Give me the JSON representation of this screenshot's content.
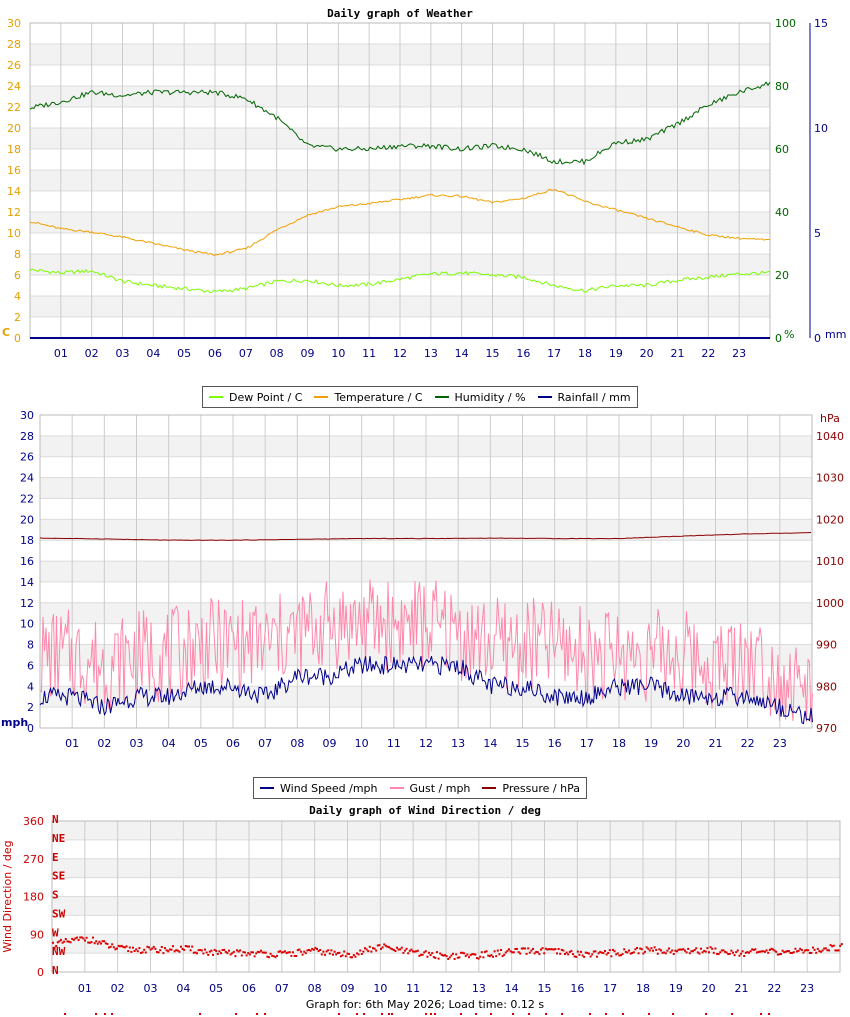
{
  "chart_data": [
    {
      "type": "line",
      "title": "Daily graph of Weather",
      "x_ticks": [
        "01",
        "02",
        "03",
        "04",
        "05",
        "06",
        "07",
        "08",
        "09",
        "10",
        "11",
        "12",
        "13",
        "14",
        "15",
        "16",
        "17",
        "18",
        "19",
        "20",
        "21",
        "22",
        "23"
      ],
      "xlim": [
        0,
        24
      ],
      "axes": {
        "left": {
          "unit": "C",
          "ticks": [
            0,
            2,
            4,
            6,
            8,
            10,
            12,
            14,
            16,
            18,
            20,
            22,
            24,
            26,
            28,
            30
          ],
          "ylim": [
            0,
            30
          ],
          "color": "#e6a000"
        },
        "right1": {
          "unit": "%",
          "ticks": [
            0,
            20,
            40,
            60,
            80,
            100
          ],
          "ylim": [
            0,
            100
          ],
          "color": "#006400"
        },
        "right2": {
          "unit": "mm",
          "ticks": [
            0,
            5,
            10,
            15
          ],
          "ylim": [
            0,
            15
          ],
          "color": "#00008b"
        }
      },
      "grid": true,
      "legend_position": "bottom",
      "series": [
        {
          "name": "Dew Point / C",
          "axis": "left",
          "color": "#7cfc00",
          "x": [
            0,
            1,
            2,
            3,
            4,
            5,
            6,
            7,
            8,
            9,
            10,
            11,
            12,
            13,
            14,
            15,
            16,
            17,
            18,
            19,
            20,
            21,
            22,
            23,
            24
          ],
          "y": [
            6.5,
            6.2,
            6.4,
            5.4,
            5.0,
            4.7,
            4.4,
            4.7,
            5.4,
            5.5,
            5.0,
            5.1,
            5.6,
            6.1,
            6.2,
            6.0,
            5.8,
            5.0,
            4.5,
            5.0,
            5.0,
            5.5,
            5.8,
            6.1,
            6.2
          ]
        },
        {
          "name": "Temperature / C",
          "axis": "left",
          "color": "#f0a000",
          "x": [
            0,
            1,
            2,
            3,
            4,
            5,
            6,
            7,
            8,
            9,
            10,
            11,
            12,
            13,
            14,
            15,
            16,
            17,
            18,
            19,
            20,
            21,
            22,
            23,
            24
          ],
          "y": [
            11.1,
            10.4,
            10.1,
            9.6,
            9.0,
            8.4,
            7.9,
            8.5,
            10.3,
            11.7,
            12.5,
            12.8,
            13.2,
            13.6,
            13.5,
            12.9,
            13.3,
            14.2,
            13.0,
            12.2,
            11.4,
            10.6,
            9.8,
            9.5,
            9.3
          ]
        },
        {
          "name": "Humidity / %",
          "axis": "right1",
          "color": "#006400",
          "x": [
            0,
            1,
            2,
            3,
            4,
            5,
            6,
            7,
            8,
            9,
            10,
            11,
            12,
            13,
            14,
            15,
            16,
            17,
            18,
            19,
            20,
            21,
            22,
            23,
            24
          ],
          "y": [
            73,
            75,
            78,
            77,
            78,
            78,
            78,
            76,
            70,
            61,
            60,
            60,
            61,
            61,
            60,
            61,
            60,
            56,
            56,
            62,
            63,
            68,
            74,
            78,
            81
          ]
        },
        {
          "name": "Rainfall / mm",
          "axis": "right2",
          "color": "#00008b",
          "x": [
            0,
            24
          ],
          "y": [
            0,
            0
          ]
        }
      ]
    },
    {
      "type": "line",
      "title": "",
      "x_ticks": [
        "01",
        "02",
        "03",
        "04",
        "05",
        "06",
        "07",
        "08",
        "09",
        "10",
        "11",
        "12",
        "13",
        "14",
        "15",
        "16",
        "17",
        "18",
        "19",
        "20",
        "21",
        "22",
        "23"
      ],
      "xlim": [
        0,
        24
      ],
      "axes": {
        "left": {
          "unit": "mph",
          "ticks": [
            0,
            2,
            4,
            6,
            8,
            10,
            12,
            14,
            16,
            18,
            20,
            22,
            24,
            26,
            28,
            30
          ],
          "ylim": [
            0,
            30
          ],
          "color": "#00008b"
        },
        "right": {
          "unit": "hPa",
          "ticks": [
            970,
            980,
            990,
            1000,
            1010,
            1020,
            1030,
            1040
          ],
          "ylim": [
            970,
            1045
          ],
          "color": "#8b0000"
        }
      },
      "grid": true,
      "legend_position": "bottom",
      "series": [
        {
          "name": "Wind Speed /mph",
          "axis": "left",
          "color": "#00008b",
          "x": [
            0,
            1,
            2,
            3,
            4,
            5,
            6,
            7,
            8,
            9,
            10,
            11,
            12,
            13,
            14,
            15,
            16,
            17,
            18,
            19,
            20,
            21,
            22,
            23,
            24
          ],
          "y": [
            3,
            3,
            2,
            3,
            3,
            4,
            4,
            3,
            5,
            5,
            6,
            6,
            6,
            6,
            4,
            4,
            3,
            3,
            4,
            4,
            3,
            3,
            3,
            2,
            1
          ]
        },
        {
          "name": "Gust / mph",
          "axis": "left",
          "color": "#ff88aa",
          "x": [
            0,
            1,
            2,
            3,
            4,
            5,
            6,
            7,
            8,
            9,
            10,
            11,
            12,
            13,
            14,
            15,
            16,
            17,
            18,
            19,
            20,
            21,
            22,
            23,
            24
          ],
          "y": [
            7,
            7,
            6,
            7,
            7,
            8,
            8,
            8,
            9,
            10,
            10,
            10,
            10,
            9,
            8,
            8,
            8,
            7,
            7,
            7,
            7,
            6,
            7,
            5,
            3
          ]
        },
        {
          "name": "Pressure / hPa",
          "axis": "right",
          "color": "#8b0000",
          "x": [
            0,
            2,
            4,
            6,
            8,
            10,
            12,
            14,
            16,
            18,
            20,
            22,
            24
          ],
          "y": [
            1015.5,
            1015.3,
            1015.0,
            1015.0,
            1015.2,
            1015.4,
            1015.4,
            1015.5,
            1015.4,
            1015.4,
            1016.0,
            1016.5,
            1016.8
          ]
        }
      ]
    },
    {
      "type": "scatter",
      "title": "Daily graph of Wind Direction / deg",
      "ylabel": "Wind Direction / deg",
      "x_ticks": [
        "01",
        "02",
        "03",
        "04",
        "05",
        "06",
        "07",
        "08",
        "09",
        "10",
        "11",
        "12",
        "13",
        "14",
        "15",
        "16",
        "17",
        "18",
        "19",
        "20",
        "21",
        "22",
        "23"
      ],
      "xlim": [
        0,
        24
      ],
      "ylim": [
        0,
        360
      ],
      "y_ticks": [
        0,
        90,
        180,
        270,
        360
      ],
      "compass_labels": [
        "N",
        "NW",
        "W",
        "SW",
        "S",
        "SE",
        "E",
        "NE",
        "N"
      ],
      "grid": true,
      "series": [
        {
          "name": "Wind Direction",
          "color": "#dd0000",
          "x": [
            0,
            1,
            2,
            3,
            4,
            5,
            6,
            7,
            8,
            9,
            10,
            11,
            12,
            13,
            14,
            15,
            16,
            17,
            18,
            19,
            20,
            21,
            22,
            23,
            24
          ],
          "y": [
            65,
            80,
            55,
            52,
            55,
            45,
            45,
            42,
            50,
            40,
            60,
            45,
            38,
            40,
            48,
            50,
            42,
            45,
            52,
            50,
            52,
            46,
            48,
            50,
            60
          ]
        }
      ]
    }
  ],
  "legends": {
    "top": [
      "Dew Point / C",
      "Temperature / C",
      "Humidity / %",
      "Rainfall / mm"
    ],
    "top_colors": [
      "#7cfc00",
      "#f0a000",
      "#006400",
      "#00008b"
    ],
    "bottom": [
      "Wind Speed /mph",
      "Gust / mph",
      "Pressure / hPa"
    ],
    "bottom_colors": [
      "#00008b",
      "#ff88aa",
      "#8b0000"
    ]
  },
  "footer": "Graph for: 6th May 2026; Load time: 0.12 s"
}
